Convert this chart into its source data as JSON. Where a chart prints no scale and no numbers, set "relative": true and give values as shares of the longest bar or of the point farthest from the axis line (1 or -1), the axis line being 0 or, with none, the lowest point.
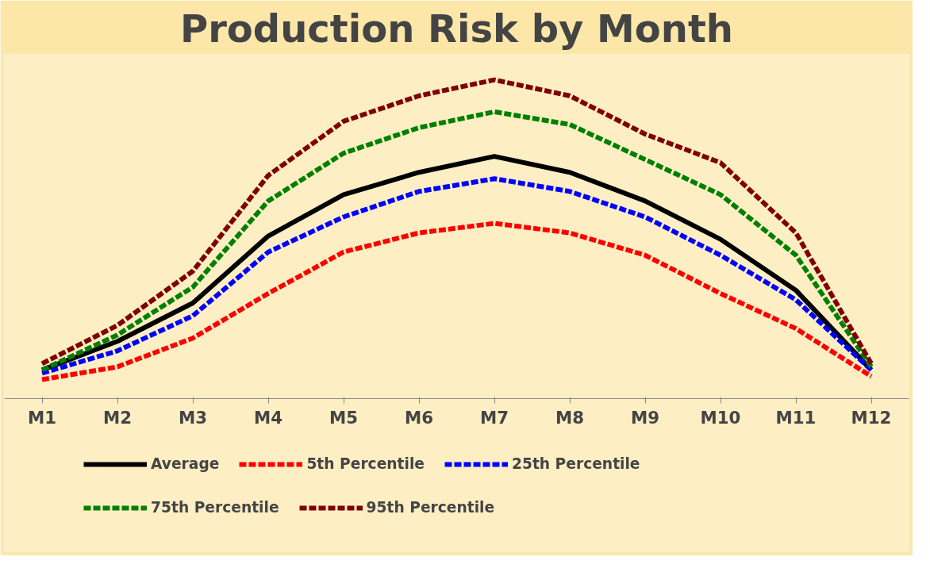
{
  "chart_data": {
    "type": "line",
    "title": "Production Risk by Month",
    "relative": true,
    "categories": [
      "M1",
      "M2",
      "M3",
      "M4",
      "M5",
      "M6",
      "M7",
      "M8",
      "M9",
      "M10",
      "M11",
      "M12"
    ],
    "legend": "bottom",
    "series": [
      {
        "name": "Average",
        "color": "#000000",
        "line_style": "solid",
        "values": [
          0.09,
          0.18,
          0.3,
          0.51,
          0.64,
          0.71,
          0.76,
          0.71,
          0.62,
          0.5,
          0.34,
          0.09
        ]
      },
      {
        "name": "5th Percentile",
        "color": "#ff0000",
        "line_style": "dashed",
        "values": [
          0.06,
          0.1,
          0.19,
          0.33,
          0.46,
          0.52,
          0.55,
          0.52,
          0.45,
          0.33,
          0.22,
          0.07
        ]
      },
      {
        "name": "25th Percentile",
        "color": "#0000ff",
        "line_style": "dashed",
        "values": [
          0.08,
          0.15,
          0.26,
          0.46,
          0.57,
          0.65,
          0.69,
          0.65,
          0.57,
          0.45,
          0.31,
          0.09
        ]
      },
      {
        "name": "75th Percentile",
        "color": "#008000",
        "line_style": "dashed",
        "values": [
          0.09,
          0.2,
          0.35,
          0.62,
          0.77,
          0.85,
          0.9,
          0.86,
          0.75,
          0.64,
          0.45,
          0.1
        ]
      },
      {
        "name": "95th Percentile",
        "color": "#800000",
        "line_style": "dashed",
        "values": [
          0.11,
          0.23,
          0.4,
          0.7,
          0.87,
          0.95,
          1.0,
          0.95,
          0.83,
          0.74,
          0.52,
          0.11
        ]
      }
    ]
  }
}
